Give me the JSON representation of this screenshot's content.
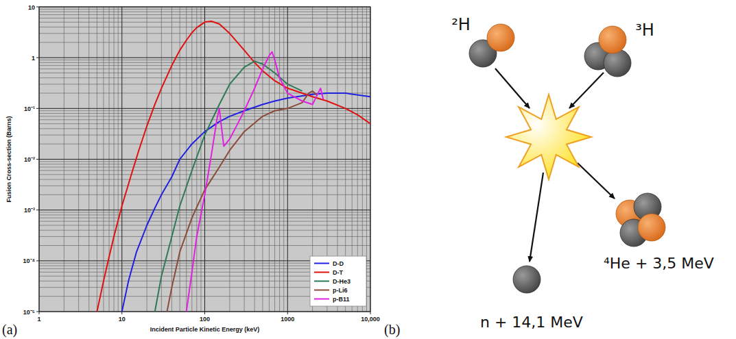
{
  "chart_data": {
    "type": "line",
    "xlabel": "Incident Particle Kinetic Energy (keV)",
    "ylabel": "Fusion Cross-section (Barns)",
    "log": true,
    "grid": true,
    "legend": "lower right",
    "xlim": [
      1,
      10000
    ],
    "xticks": [
      1,
      10,
      100,
      1000,
      {
        "value": 10000,
        "label": "10,000"
      }
    ],
    "ylim": [
      1e-05,
      10
    ],
    "yticks": [
      10,
      1,
      {
        "value": 0.1,
        "label": "10⁻¹"
      },
      {
        "value": 0.01,
        "label": "10⁻²"
      },
      {
        "value": 0.001,
        "label": "10⁻³"
      },
      {
        "value": 0.0001,
        "label": "10⁻⁴"
      },
      {
        "value": 1e-05,
        "label": "10⁻⁵"
      }
    ],
    "series": [
      {
        "name": "D-D",
        "color": "#2020e0",
        "x": [
          10,
          12,
          15,
          20,
          25,
          30,
          40,
          50,
          70,
          100,
          150,
          200,
          300,
          500,
          700,
          1000,
          2000,
          3000,
          5000,
          10000
        ],
        "values": [
          1e-05,
          4e-05,
          0.00015,
          0.0005,
          0.0011,
          0.002,
          0.0045,
          0.01,
          0.02,
          0.035,
          0.055,
          0.07,
          0.09,
          0.12,
          0.14,
          0.16,
          0.19,
          0.2,
          0.2,
          0.17
        ]
      },
      {
        "name": "D-T",
        "color": "#e01010",
        "x": [
          5,
          6,
          7,
          8,
          10,
          13,
          16,
          20,
          25,
          30,
          40,
          50,
          60,
          70,
          80,
          100,
          120,
          150,
          200,
          300,
          400,
          500,
          700,
          1000,
          1500,
          2000,
          3000,
          5000,
          7000,
          10000
        ],
        "values": [
          1e-05,
          4e-05,
          0.00012,
          0.0003,
          0.0012,
          0.005,
          0.015,
          0.045,
          0.12,
          0.25,
          0.7,
          1.4,
          2.2,
          3.1,
          3.9,
          5.0,
          5.2,
          4.6,
          3.0,
          1.4,
          0.8,
          0.55,
          0.35,
          0.25,
          0.2,
          0.17,
          0.14,
          0.1,
          0.075,
          0.05
        ]
      },
      {
        "name": "D-He3",
        "color": "#2e7a55",
        "x": [
          25,
          30,
          40,
          50,
          70,
          100,
          150,
          200,
          300,
          400,
          500,
          700,
          1000,
          1500
        ],
        "values": [
          1e-05,
          5e-05,
          0.0003,
          0.0012,
          0.006,
          0.03,
          0.12,
          0.3,
          0.65,
          0.85,
          0.75,
          0.5,
          0.3,
          0.22
        ]
      },
      {
        "name": "p-Li6",
        "color": "#8b4a3a",
        "x": [
          35,
          40,
          50,
          70,
          100,
          150,
          200,
          300,
          500,
          700,
          1000,
          1500,
          1800,
          2000,
          2300
        ],
        "values": [
          1e-05,
          3e-05,
          0.00015,
          0.0007,
          0.0025,
          0.007,
          0.015,
          0.035,
          0.07,
          0.09,
          0.1,
          0.13,
          0.2,
          0.22,
          0.18
        ]
      },
      {
        "name": "p-B11",
        "color": "#e020e0",
        "x": [
          60,
          70,
          80,
          100,
          120,
          140,
          150,
          160,
          170,
          200,
          250,
          300,
          400,
          500,
          600,
          650,
          700,
          800,
          1000,
          1500,
          2000,
          2500,
          2700
        ],
        "values": [
          1e-05,
          6e-05,
          0.0003,
          0.002,
          0.012,
          0.06,
          0.1,
          0.04,
          0.018,
          0.025,
          0.05,
          0.09,
          0.25,
          0.6,
          1.1,
          1.3,
          0.9,
          0.4,
          0.2,
          0.14,
          0.12,
          0.25,
          0.15
        ]
      }
    ]
  },
  "diagram": {
    "reactants": [
      {
        "label": "²H"
      },
      {
        "label": "³H"
      }
    ],
    "products": [
      {
        "label": "n + 14,1 MeV"
      },
      {
        "label": "⁴He + 3,5 MeV"
      }
    ]
  },
  "panel_labels": [
    "(a)",
    "(b)"
  ]
}
